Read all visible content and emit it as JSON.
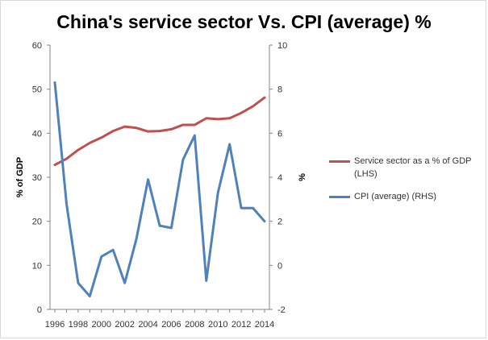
{
  "chart_data": {
    "type": "line",
    "title": "China's service sector Vs. CPI (average) %",
    "x": [
      "1996",
      "1997",
      "1998",
      "1999",
      "2000",
      "2001",
      "2002",
      "2003",
      "2004",
      "2005",
      "2006",
      "2007",
      "2008",
      "2009",
      "2010",
      "2011",
      "2012",
      "2013",
      "2014"
    ],
    "xtick_labels": [
      "1996",
      "1998",
      "2000",
      "2002",
      "2004",
      "2006",
      "2008",
      "2010",
      "2012",
      "2014"
    ],
    "y_left": {
      "label": "% of GDP",
      "lim": [
        0,
        60
      ],
      "ticks": [
        "0",
        "10",
        "20",
        "30",
        "40",
        "50",
        "60"
      ]
    },
    "y_right": {
      "label": "%",
      "lim": [
        -2,
        10
      ],
      "ticks": [
        "-2",
        "0",
        "2",
        "4",
        "6",
        "8",
        "10"
      ]
    },
    "grid": false,
    "legend_position": "right",
    "series": [
      {
        "name": "Service sector as a % of GDP (LHS)",
        "axis": "left",
        "color": "#c0504d",
        "values": [
          32.8,
          34.2,
          36.2,
          37.8,
          39.0,
          40.5,
          41.5,
          41.2,
          40.4,
          40.5,
          40.9,
          41.9,
          41.9,
          43.4,
          43.2,
          43.4,
          44.6,
          46.1,
          48.1
        ]
      },
      {
        "name": "CPI (average) (RHS)",
        "axis": "right",
        "color": "#4f81bd",
        "values": [
          8.3,
          2.8,
          -0.8,
          -1.4,
          0.4,
          0.7,
          -0.8,
          1.2,
          3.9,
          1.8,
          1.7,
          4.8,
          5.9,
          -0.7,
          3.3,
          5.5,
          2.6,
          2.6,
          2.0
        ]
      }
    ]
  }
}
